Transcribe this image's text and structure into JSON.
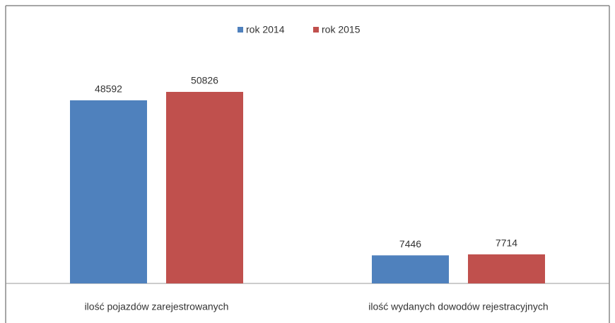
{
  "chart_data": {
    "type": "bar",
    "categories": [
      "ilość pojazdów zarejestrowanych",
      "ilość wydanych dowodów rejestracyjnych"
    ],
    "series": [
      {
        "name": "rok 2014",
        "color": "#4f81bd",
        "values": [
          48592,
          7446
        ]
      },
      {
        "name": "rok 2015",
        "color": "#c0504d",
        "values": [
          50826,
          7714
        ]
      }
    ],
    "legend": "top"
  }
}
